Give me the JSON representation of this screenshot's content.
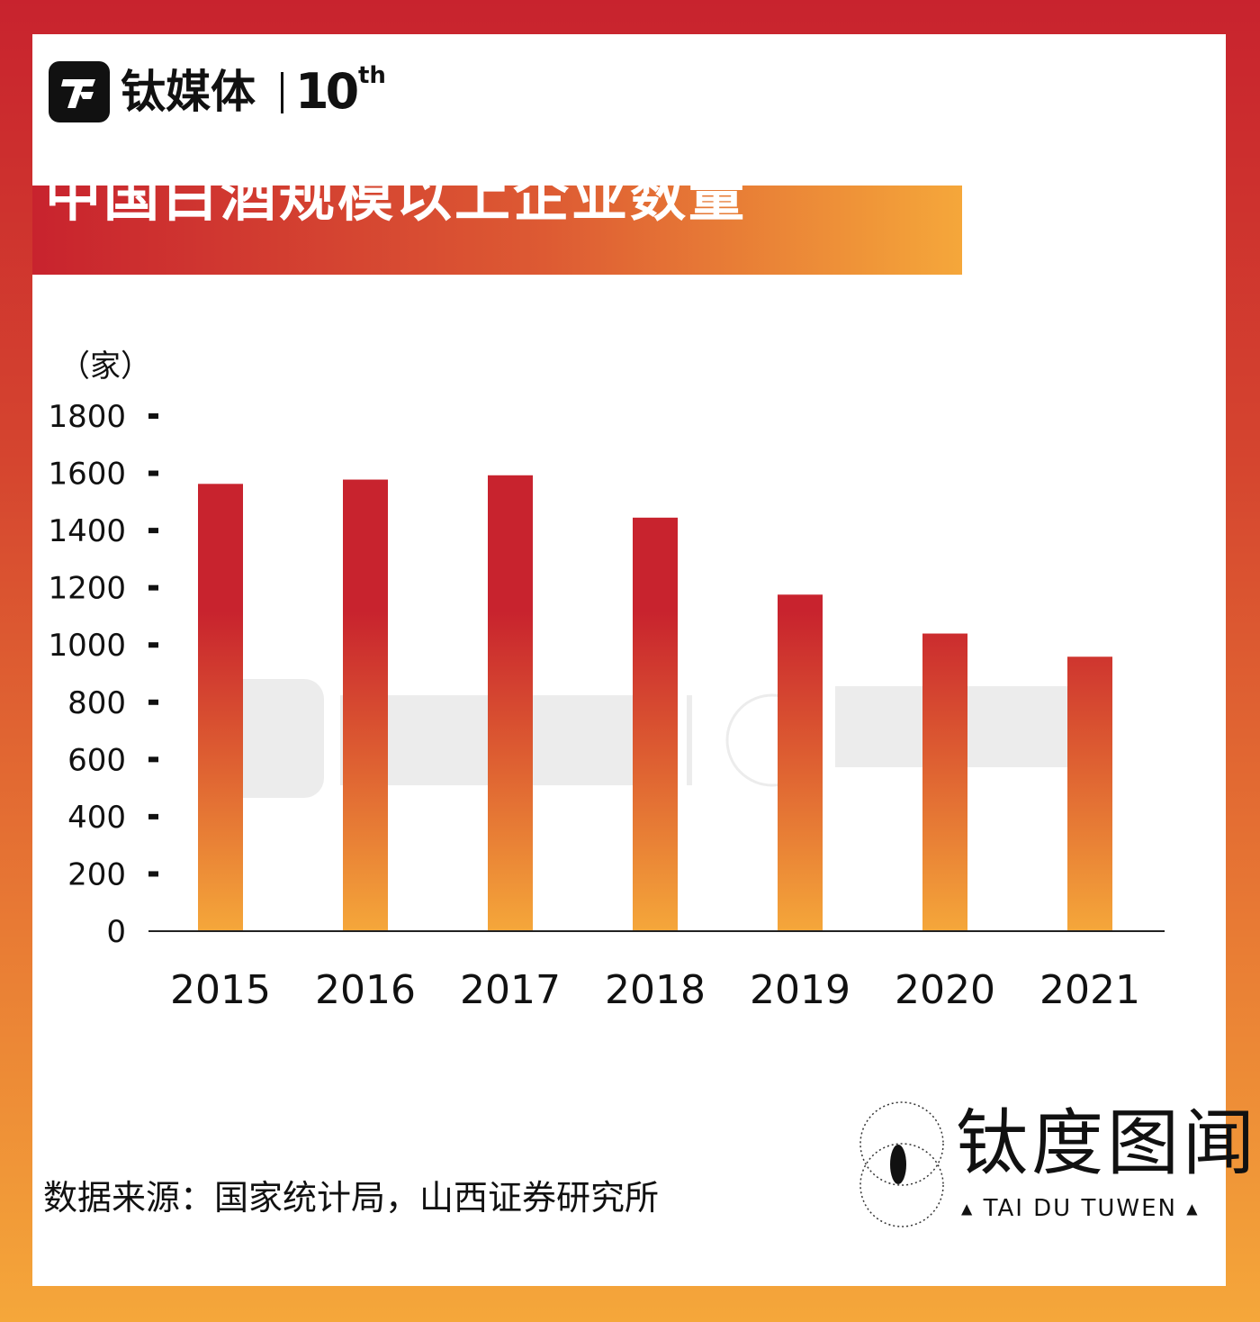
{
  "header": {
    "logo_text": "钛媒体",
    "anniversary_number": "10",
    "anniversary_suffix": "th"
  },
  "title": "中国白酒规模以上企业数量",
  "chart_data": {
    "type": "bar",
    "title": "中国白酒规模以上企业数量",
    "unit_label": "（家）",
    "categories": [
      "2015",
      "2016",
      "2017",
      "2018",
      "2019",
      "2020",
      "2021"
    ],
    "values": [
      1563,
      1578,
      1593,
      1445,
      1176,
      1040,
      959
    ],
    "ylim": [
      0,
      1800
    ],
    "yticks": [
      0,
      200,
      400,
      600,
      800,
      1000,
      1200,
      1400,
      1600,
      1800
    ],
    "grid": false,
    "legend": "none",
    "colors": {
      "bar_top": "#c8232e",
      "bar_bottom": "#f5a73a"
    }
  },
  "source": "数据来源：国家统计局，山西证券研究所",
  "brand": {
    "name_cn": "钛度图闻",
    "name_en": "TAI DU TUWEN",
    "triangle": "▲"
  },
  "colors": {
    "frame_top": "#c8232e",
    "frame_bottom": "#f5a73a",
    "text": "#111111"
  }
}
